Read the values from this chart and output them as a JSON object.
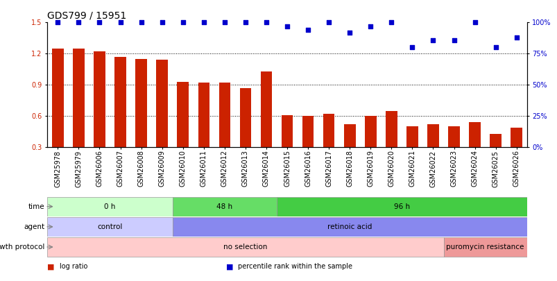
{
  "title": "GDS799 / 15951",
  "samples": [
    "GSM25978",
    "GSM25979",
    "GSM26006",
    "GSM26007",
    "GSM26008",
    "GSM26009",
    "GSM26010",
    "GSM26011",
    "GSM26012",
    "GSM26013",
    "GSM26014",
    "GSM26015",
    "GSM26016",
    "GSM26017",
    "GSM26018",
    "GSM26019",
    "GSM26020",
    "GSM26021",
    "GSM26022",
    "GSM26023",
    "GSM26024",
    "GSM26025",
    "GSM26026"
  ],
  "log_ratio": [
    1.25,
    1.25,
    1.22,
    1.17,
    1.15,
    1.14,
    0.93,
    0.92,
    0.92,
    0.87,
    1.03,
    0.61,
    0.6,
    0.62,
    0.52,
    0.6,
    0.65,
    0.5,
    0.52,
    0.5,
    0.54,
    0.43,
    0.49
  ],
  "percentile_pct": [
    100,
    100,
    100,
    100,
    100,
    100,
    100,
    100,
    100,
    100,
    100,
    97,
    94,
    100,
    92,
    97,
    100,
    80,
    86,
    86,
    100,
    80,
    88
  ],
  "bar_color": "#cc2200",
  "dot_color": "#0000cc",
  "ylim_left": [
    0.3,
    1.5
  ],
  "ylim_right": [
    0,
    100
  ],
  "yticks_left": [
    0.3,
    0.6,
    0.9,
    1.2,
    1.5
  ],
  "yticks_right": [
    0,
    25,
    50,
    75,
    100
  ],
  "hlines": [
    0.6,
    0.9,
    1.2
  ],
  "time_groups": [
    {
      "label": "0 h",
      "start": 0,
      "end": 6,
      "color": "#ccffcc"
    },
    {
      "label": "48 h",
      "start": 6,
      "end": 11,
      "color": "#66dd66"
    },
    {
      "label": "96 h",
      "start": 11,
      "end": 23,
      "color": "#44cc44"
    }
  ],
  "agent_groups": [
    {
      "label": "control",
      "start": 0,
      "end": 6,
      "color": "#ccccff"
    },
    {
      "label": "retinoic acid",
      "start": 6,
      "end": 23,
      "color": "#8888ee"
    }
  ],
  "growth_groups": [
    {
      "label": "no selection",
      "start": 0,
      "end": 19,
      "color": "#ffcccc"
    },
    {
      "label": "puromycin resistance",
      "start": 19,
      "end": 23,
      "color": "#ee9999"
    }
  ],
  "row_labels": [
    "time",
    "agent",
    "growth protocol"
  ],
  "legend_items": [
    {
      "label": "log ratio",
      "color": "#cc2200"
    },
    {
      "label": "percentile rank within the sample",
      "color": "#0000cc"
    }
  ],
  "background_color": "#ffffff",
  "title_fontsize": 10,
  "tick_fontsize": 7,
  "bar_width": 0.55,
  "dot_size": 18
}
